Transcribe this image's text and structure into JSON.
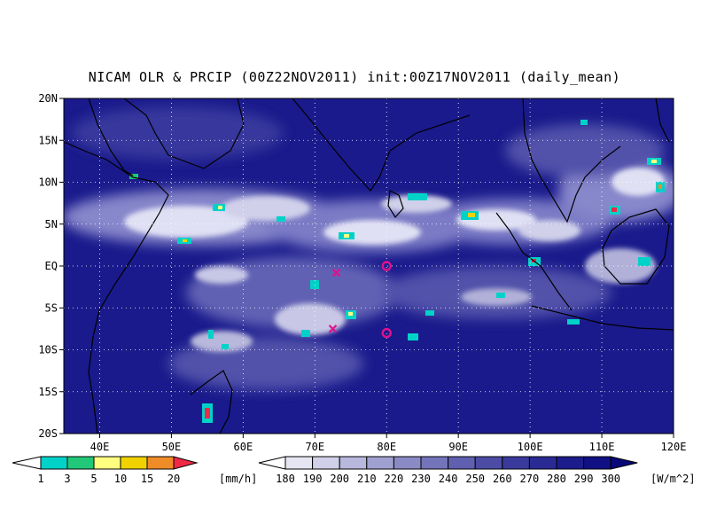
{
  "title": "NICAM OLR & PRCIP (00Z22NOV2011) init:00Z17NOV2011 (daily_mean)",
  "map": {
    "lon_range": [
      35,
      120
    ],
    "lat_range": [
      -20,
      20
    ],
    "lon_ticks": [
      "40E",
      "50E",
      "60E",
      "70E",
      "80E",
      "90E",
      "100E",
      "110E",
      "120E"
    ],
    "lat_ticks": [
      "20N",
      "15N",
      "10N",
      "5N",
      "EQ",
      "5S",
      "10S",
      "15S",
      "20S"
    ],
    "gridlines": "dotted",
    "background_color": "#1a1a8c",
    "markers": [
      {
        "type": "cross",
        "lon": 73,
        "lat": -0.8,
        "color": "#e0118c"
      },
      {
        "type": "cross",
        "lon": 72.5,
        "lat": -7.5,
        "color": "#e0118c"
      },
      {
        "type": "circle",
        "lon": 80,
        "lat": 0,
        "color": "#e0118c"
      },
      {
        "type": "circle",
        "lon": 80,
        "lat": -8,
        "color": "#e0118c"
      }
    ]
  },
  "precip_colorbar": {
    "labels": [
      "1",
      "3",
      "5",
      "10",
      "15",
      "20"
    ],
    "unit": "[mm/h]",
    "colors": [
      "#00d2c8",
      "#20c878",
      "#ffff80",
      "#f0d200",
      "#f08c28",
      "#f02846"
    ]
  },
  "olr_colorbar": {
    "labels": [
      "180",
      "190",
      "200",
      "210",
      "220",
      "230",
      "240",
      "250",
      "260",
      "270",
      "280",
      "290",
      "300"
    ],
    "unit": "[W/m^2]",
    "colors": [
      "#ffffff",
      "#e6e6f2",
      "#d0d0e8",
      "#b8b8dc",
      "#a0a0d0",
      "#8a8ac4",
      "#7474ba",
      "#6060b0",
      "#4c4ca6",
      "#3a3a9c",
      "#2a2a94",
      "#1c1c8c",
      "#101084",
      "#080878"
    ]
  }
}
